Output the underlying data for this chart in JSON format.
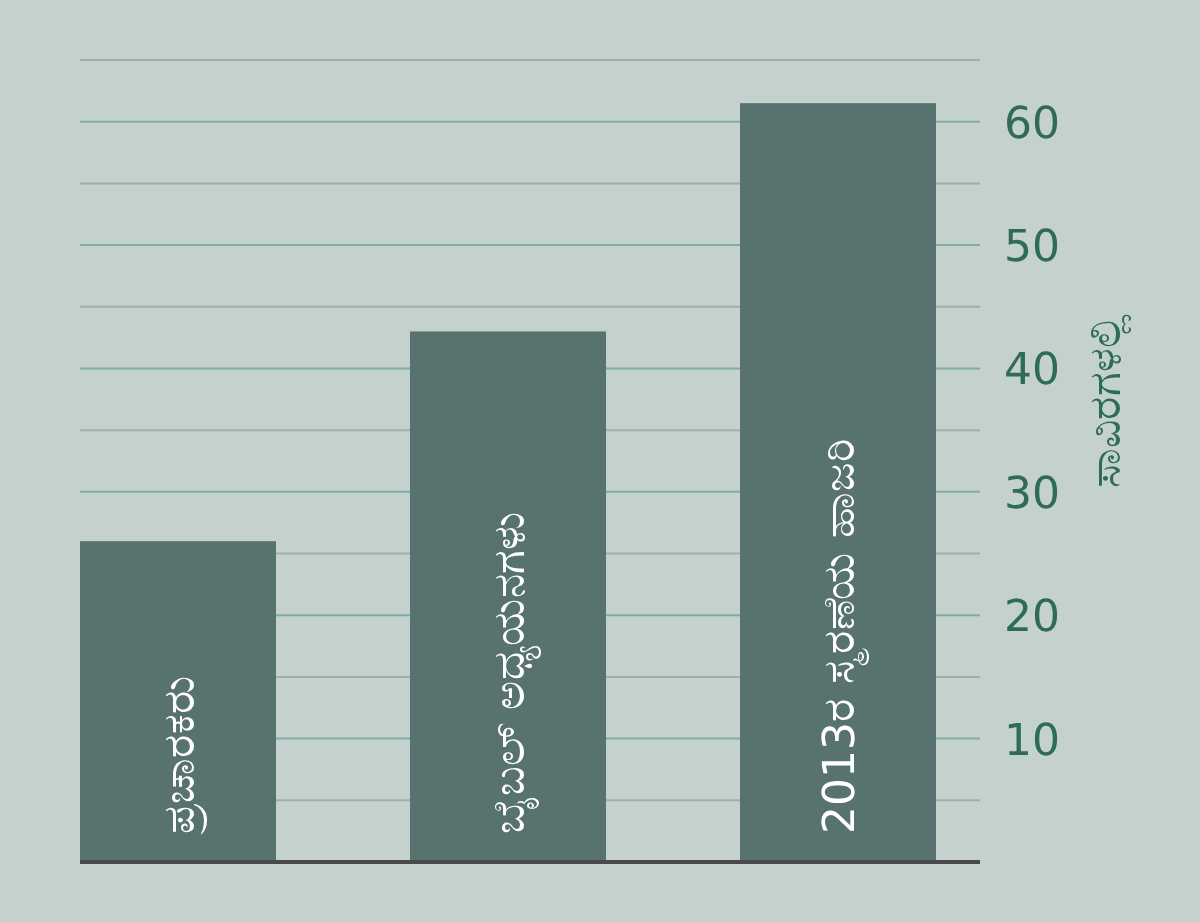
{
  "chart_data": {
    "type": "bar",
    "categories": [
      "ಪ್ರಚಾರಕರು",
      "ಬೈಬಲ್ ಅಧ್ಯಯನಗಳು",
      "2013ರ ಸ್ಮರಣೆಯ ಹಾಜರಿ"
    ],
    "values": [
      26,
      43,
      61.5
    ],
    "color": "#587270",
    "ylabel": "ಸಾವಿರಗಳಲ್ಲಿ",
    "ylim": [
      0,
      65
    ],
    "yticks": [
      {
        "value": 5,
        "label": null
      },
      10,
      {
        "value": 15,
        "label": null
      },
      20,
      {
        "value": 25,
        "label": null
      },
      30,
      {
        "value": 35,
        "label": null
      },
      40,
      {
        "value": 45,
        "label": null
      },
      50,
      {
        "value": 55,
        "label": null
      },
      60,
      {
        "value": 65,
        "label": null
      }
    ],
    "grid": "y"
  }
}
